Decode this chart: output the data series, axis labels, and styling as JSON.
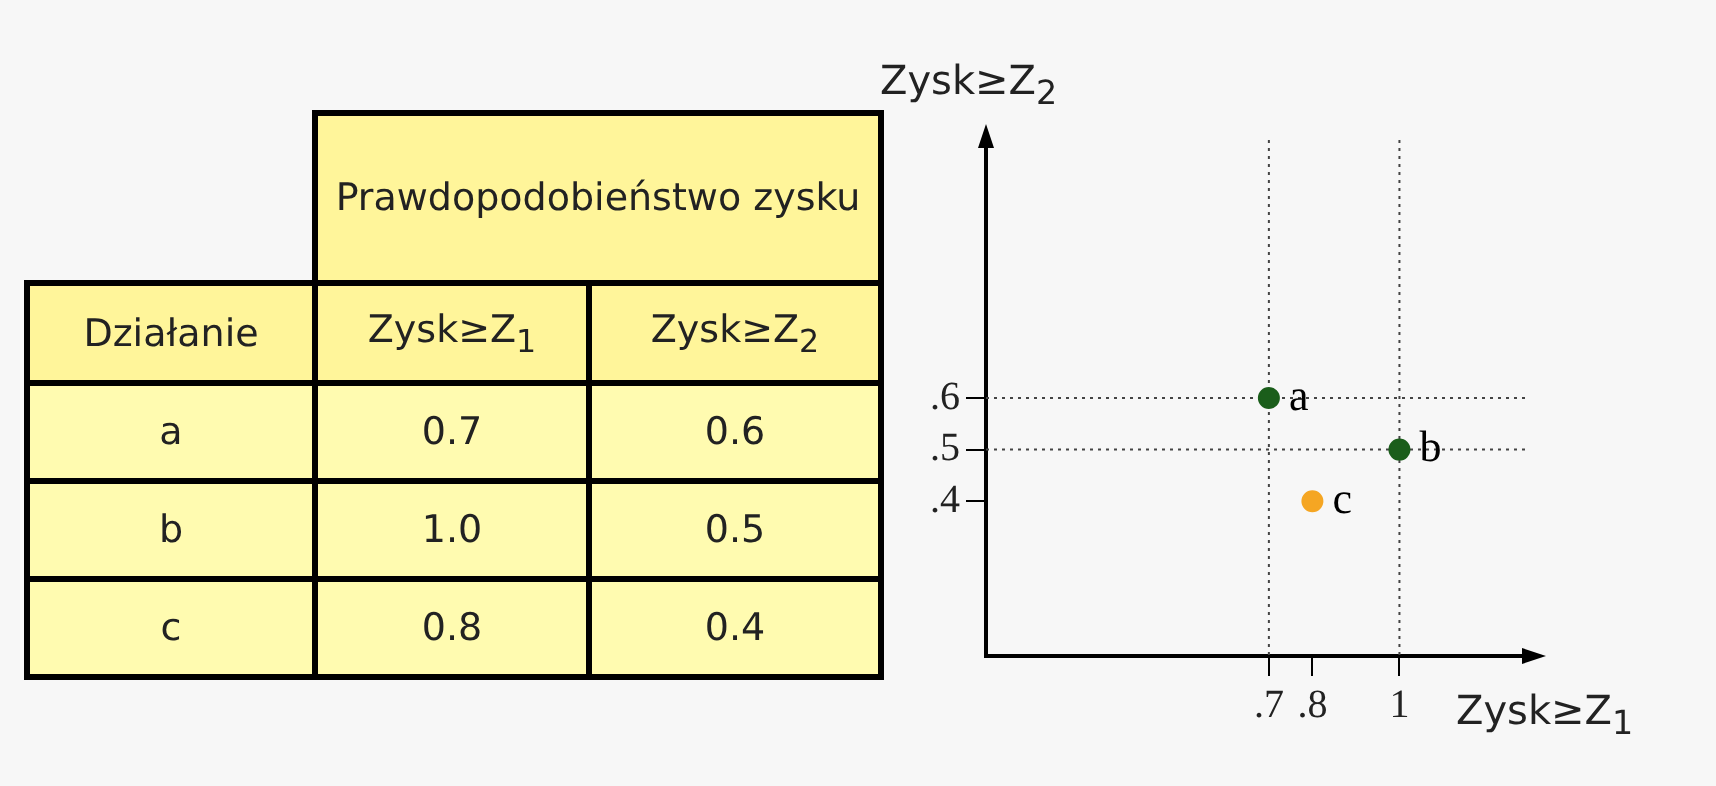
{
  "chart_data": [
    {
      "type": "other",
      "annotations": [
        "Prawdopodobieństwo zysku",
        "Działanie",
        "Zysk≥Z$_{1}$",
        "Zysk≥Z$_{2}$",
        "a",
        "0.7",
        "0.6",
        "b",
        "1.0",
        "0.5",
        "c",
        "0.8",
        "0.4"
      ]
    },
    {
      "type": "scatter",
      "xlabel": "Zysk≥Z$_{1}$",
      "ylabel": "Zysk≥Z$_{2}$",
      "series": [
        {
          "x": [
            0.7,
            1.0,
            0.8
          ],
          "values": [
            0.6,
            0.5,
            0.4
          ],
          "colors": [
            "#1b5e1b",
            "#1b5e1b",
            "#f5a623"
          ]
        }
      ],
      "xlim": [
        0.05,
        1.3
      ],
      "ylim": [
        0.1,
        1.1
      ],
      "xticks": [
        {
          "value": 0.7,
          "label": ".7"
        },
        {
          "value": 0.8,
          "label": ".8"
        },
        1
      ],
      "yticks": [
        {
          "value": 0.4,
          "label": ".4"
        },
        {
          "value": 0.5,
          "label": ".5"
        },
        {
          "value": 0.6,
          "label": ".6"
        }
      ],
      "ref_lines": [
        {
          "axis": "y",
          "value": 0.6,
          "line_style": "dotted"
        },
        {
          "axis": "y",
          "value": 0.5,
          "line_style": "dotted"
        },
        {
          "axis": "x",
          "value": 0.7,
          "line_style": "dotted"
        },
        {
          "axis": "x",
          "value": 1,
          "line_style": "dotted"
        }
      ],
      "annotations": [
        {
          "text": "a",
          "x": 0.7,
          "y": 0.6
        },
        {
          "text": "b",
          "x": 1.0,
          "y": 0.5
        },
        {
          "text": "c",
          "x": 0.8,
          "y": 0.4
        }
      ],
      "grid": false,
      "legend": false,
      "marker": "circle"
    }
  ]
}
